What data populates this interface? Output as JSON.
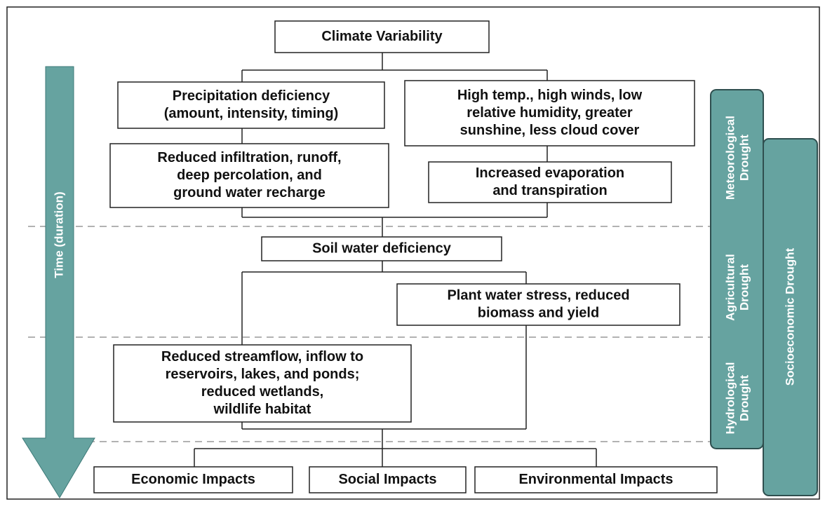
{
  "nodes": [
    {
      "lines": [
        "Climate Variability"
      ]
    },
    {
      "lines": [
        "Precipitation deficiency",
        "(amount, intensity, timing)"
      ]
    },
    {
      "lines": [
        "High temp., high winds, low",
        "relative humidity, greater",
        "sunshine, less cloud cover"
      ]
    },
    {
      "lines": [
        "Reduced infiltration, runoff,",
        "deep percolation, and",
        "ground water recharge"
      ]
    },
    {
      "lines": [
        "Increased evaporation",
        "and transpiration"
      ]
    },
    {
      "lines": [
        "Soil water deficiency"
      ]
    },
    {
      "lines": [
        "Plant water stress, reduced",
        "biomass and yield"
      ]
    },
    {
      "lines": [
        "Reduced streamflow, inflow to",
        "reservoirs, lakes, and ponds;",
        "reduced wetlands,",
        "wildlife habitat"
      ]
    },
    {
      "lines": [
        "Economic Impacts"
      ]
    },
    {
      "lines": [
        "Social Impacts"
      ]
    },
    {
      "lines": [
        "Environmental Impacts"
      ]
    }
  ],
  "time_axis": "Time (duration)",
  "drought_types": [
    {
      "lines": [
        "Meteorological",
        "Drought"
      ]
    },
    {
      "lines": [
        "Agricultural",
        "Drought"
      ]
    },
    {
      "lines": [
        "Hydrological",
        "Drought"
      ]
    }
  ],
  "socioeconomic": "Socioeconomic Drought"
}
